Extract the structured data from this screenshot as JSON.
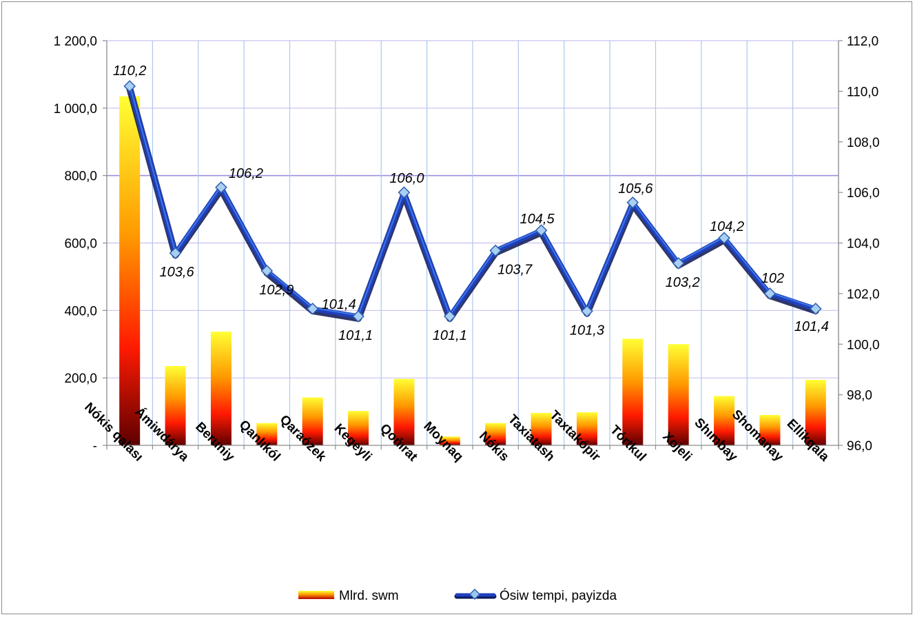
{
  "chart_data": {
    "type": "bar",
    "categories": [
      "Nókis qalası",
      "Ámiwdárya",
      "Beruniy",
      "Qanlıkól",
      "Qaraózek",
      "Kegeyli",
      "Qońırat",
      "Moynaq",
      "Nókis",
      "Taxiatash",
      "Taxtakópir",
      "Tórtkul",
      "Xojeli",
      "Shımbay",
      "Shomanay",
      "Ellikqala"
    ],
    "series": [
      {
        "name": "Mlrd. swm",
        "type": "bar",
        "axis": "left",
        "values": [
          1035,
          235,
          337,
          66,
          142,
          102,
          197,
          26,
          66,
          96,
          98,
          316,
          300,
          146,
          90,
          194
        ],
        "gradient": [
          "#ffff33",
          "#ff9900",
          "#ff1a00",
          "#5c0000"
        ]
      },
      {
        "name": "Ósiw tempi, payizda",
        "type": "line",
        "axis": "right",
        "values": [
          110.2,
          103.6,
          106.2,
          102.9,
          101.4,
          101.1,
          106.0,
          101.1,
          103.7,
          104.5,
          101.3,
          105.6,
          103.2,
          104.2,
          102,
          101.4
        ],
        "labels": [
          "110,2",
          "103,6",
          "106,2",
          "102,9",
          "101,4",
          "101,1",
          "106,0",
          "101,1",
          "103,7",
          "104,5",
          "101,3",
          "105,6",
          "103,2",
          "104,2",
          "102",
          "101,4"
        ],
        "color": "#1f3fbf"
      }
    ],
    "y_left": {
      "ylim": [
        0,
        1200
      ],
      "ticks": [
        0,
        200,
        400,
        600,
        800,
        1000,
        1200
      ],
      "tick_labels": [
        "-",
        "200,0",
        "400,0",
        "600,0",
        "800,0",
        "1 000,0",
        "1 200,0"
      ]
    },
    "y_right": {
      "ylim": [
        96,
        112
      ],
      "ticks": [
        96,
        98,
        100,
        102,
        104,
        106,
        108,
        110,
        112
      ],
      "tick_labels": [
        "96,0",
        "98,0",
        "100,0",
        "102,0",
        "104,0",
        "106,0",
        "108,0",
        "110,0",
        "112,0"
      ]
    },
    "grid": true,
    "legend_position": "bottom"
  }
}
